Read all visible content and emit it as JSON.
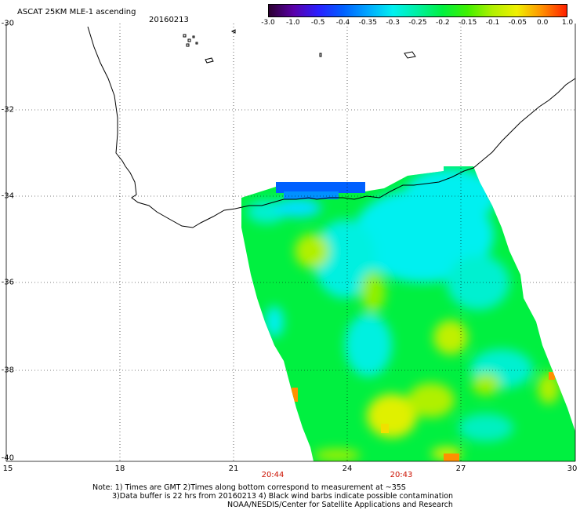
{
  "header": {
    "title": "ASCAT 25KM MLE-1 ascending",
    "date": "20160213"
  },
  "colorbar": {
    "tick_labels": [
      "-3.0",
      "-1.0",
      "-0.5",
      "-0.4",
      "-0.35",
      "-0.3",
      "-0.25",
      "-0.2",
      "-0.15",
      "-0.1",
      "-0.05",
      "0.0",
      "1.0"
    ],
    "colors": [
      "#2b0030",
      "#5a00a8",
      "#2a1fff",
      "#0060ff",
      "#00a8ff",
      "#00f0f0",
      "#00f0a0",
      "#00f040",
      "#40f000",
      "#b0f000",
      "#f0f000",
      "#ff9000",
      "#ff2000"
    ]
  },
  "axes": {
    "y_labels": [
      "-30",
      "-32",
      "-34",
      "-36",
      "-38",
      "-40"
    ],
    "x_labels": [
      "15",
      "18",
      "21",
      "24",
      "27",
      "30"
    ],
    "times": [
      "20:44",
      "20:43"
    ]
  },
  "notes": {
    "line1": "Note: 1) Times are GMT 2)Times along bottom correspond to measurement at ~35S",
    "line2": "3)Data buffer is 22 hrs from 20160213 4) Black wind barbs indicate possible contamination",
    "line3": "NOAA/NESDIS/Center for Satellite Applications and Research"
  },
  "colors": {
    "swath_base": "#00f040",
    "cyan": "#00f0f0",
    "blue": "#0060ff",
    "yellow": "#d0f000",
    "orange": "#ff9000",
    "coast": "#000000",
    "grid": "#000000",
    "time_label": "#cc1100"
  }
}
